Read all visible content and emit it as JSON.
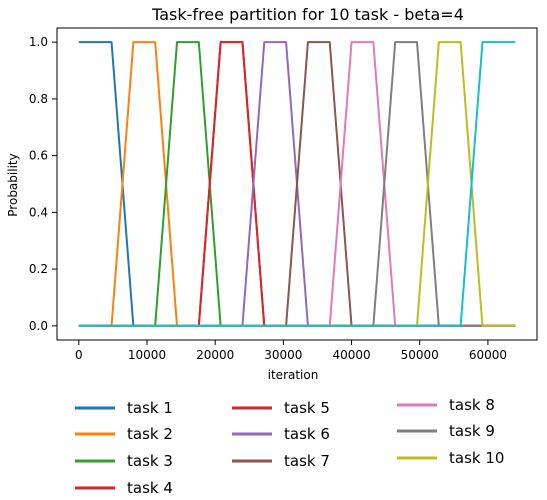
{
  "chart_data": {
    "type": "line",
    "title": "Task-free partition for 10 task - beta=4",
    "xlabel": "iteration",
    "ylabel": "Probability",
    "xlim": [
      -3200,
      67200
    ],
    "ylim": [
      -0.05,
      1.05
    ],
    "x_ticks": [
      0,
      10000,
      20000,
      30000,
      40000,
      50000,
      60000
    ],
    "x_tick_labels": [
      "0",
      "10000",
      "20000",
      "30000",
      "40000",
      "50000",
      "60000"
    ],
    "y_ticks": [
      0.0,
      0.2,
      0.4,
      0.6,
      0.8,
      1.0
    ],
    "y_tick_labels": [
      "0.0",
      "0.2",
      "0.4",
      "0.6",
      "0.8",
      "1.0"
    ],
    "grid": false,
    "legend_position": "bottom",
    "series": [
      {
        "name": "task 1",
        "color": "#1f77b4",
        "x": [
          0,
          4800,
          8000,
          64000
        ],
        "y": [
          1,
          1,
          0,
          0
        ]
      },
      {
        "name": "task 2",
        "color": "#ff7f0e",
        "x": [
          0,
          4800,
          8000,
          11200,
          14400,
          64000
        ],
        "y": [
          0,
          0,
          1,
          1,
          0,
          0
        ]
      },
      {
        "name": "task 3",
        "color": "#2ca02c",
        "x": [
          0,
          11200,
          14400,
          17600,
          20800,
          64000
        ],
        "y": [
          0,
          0,
          1,
          1,
          0,
          0
        ]
      },
      {
        "name": "task 4",
        "color": "#d62728",
        "x": [
          0,
          17600,
          20800,
          24000,
          27200,
          64000
        ],
        "y": [
          0,
          0,
          1,
          1,
          0,
          0
        ]
      },
      {
        "name": "task 5",
        "color": "#d62728",
        "x": [
          0,
          17600,
          20800,
          24000,
          27200,
          64000
        ],
        "y": [
          0,
          0,
          1,
          1,
          0,
          0
        ]
      },
      {
        "name": "task 6",
        "color": "#9467bd",
        "x": [
          0,
          24000,
          27200,
          30400,
          33600,
          64000
        ],
        "y": [
          0,
          0,
          1,
          1,
          0,
          0
        ]
      },
      {
        "name": "task 7",
        "color": "#8c564b",
        "x": [
          0,
          30400,
          33600,
          36800,
          40000,
          64000
        ],
        "y": [
          0,
          0,
          1,
          1,
          0,
          0
        ]
      },
      {
        "name": "task 8",
        "color": "#e377c2",
        "x": [
          0,
          36800,
          40000,
          43200,
          46400,
          64000
        ],
        "y": [
          0,
          0,
          1,
          1,
          0,
          0
        ]
      },
      {
        "name": "task 9",
        "color": "#7f7f7f",
        "x": [
          0,
          43200,
          46400,
          49600,
          52800,
          64000
        ],
        "y": [
          0,
          0,
          1,
          1,
          0,
          0
        ]
      },
      {
        "name": "task 10",
        "color": "#bcbd22",
        "x": [
          0,
          49600,
          52800,
          56000,
          59200,
          64000
        ],
        "y": [
          0,
          0,
          1,
          1,
          0,
          0
        ]
      },
      {
        "name": "",
        "color": "#17becf",
        "x": [
          0,
          56000,
          59200,
          64000
        ],
        "y": [
          0,
          0,
          1,
          1
        ]
      }
    ]
  }
}
